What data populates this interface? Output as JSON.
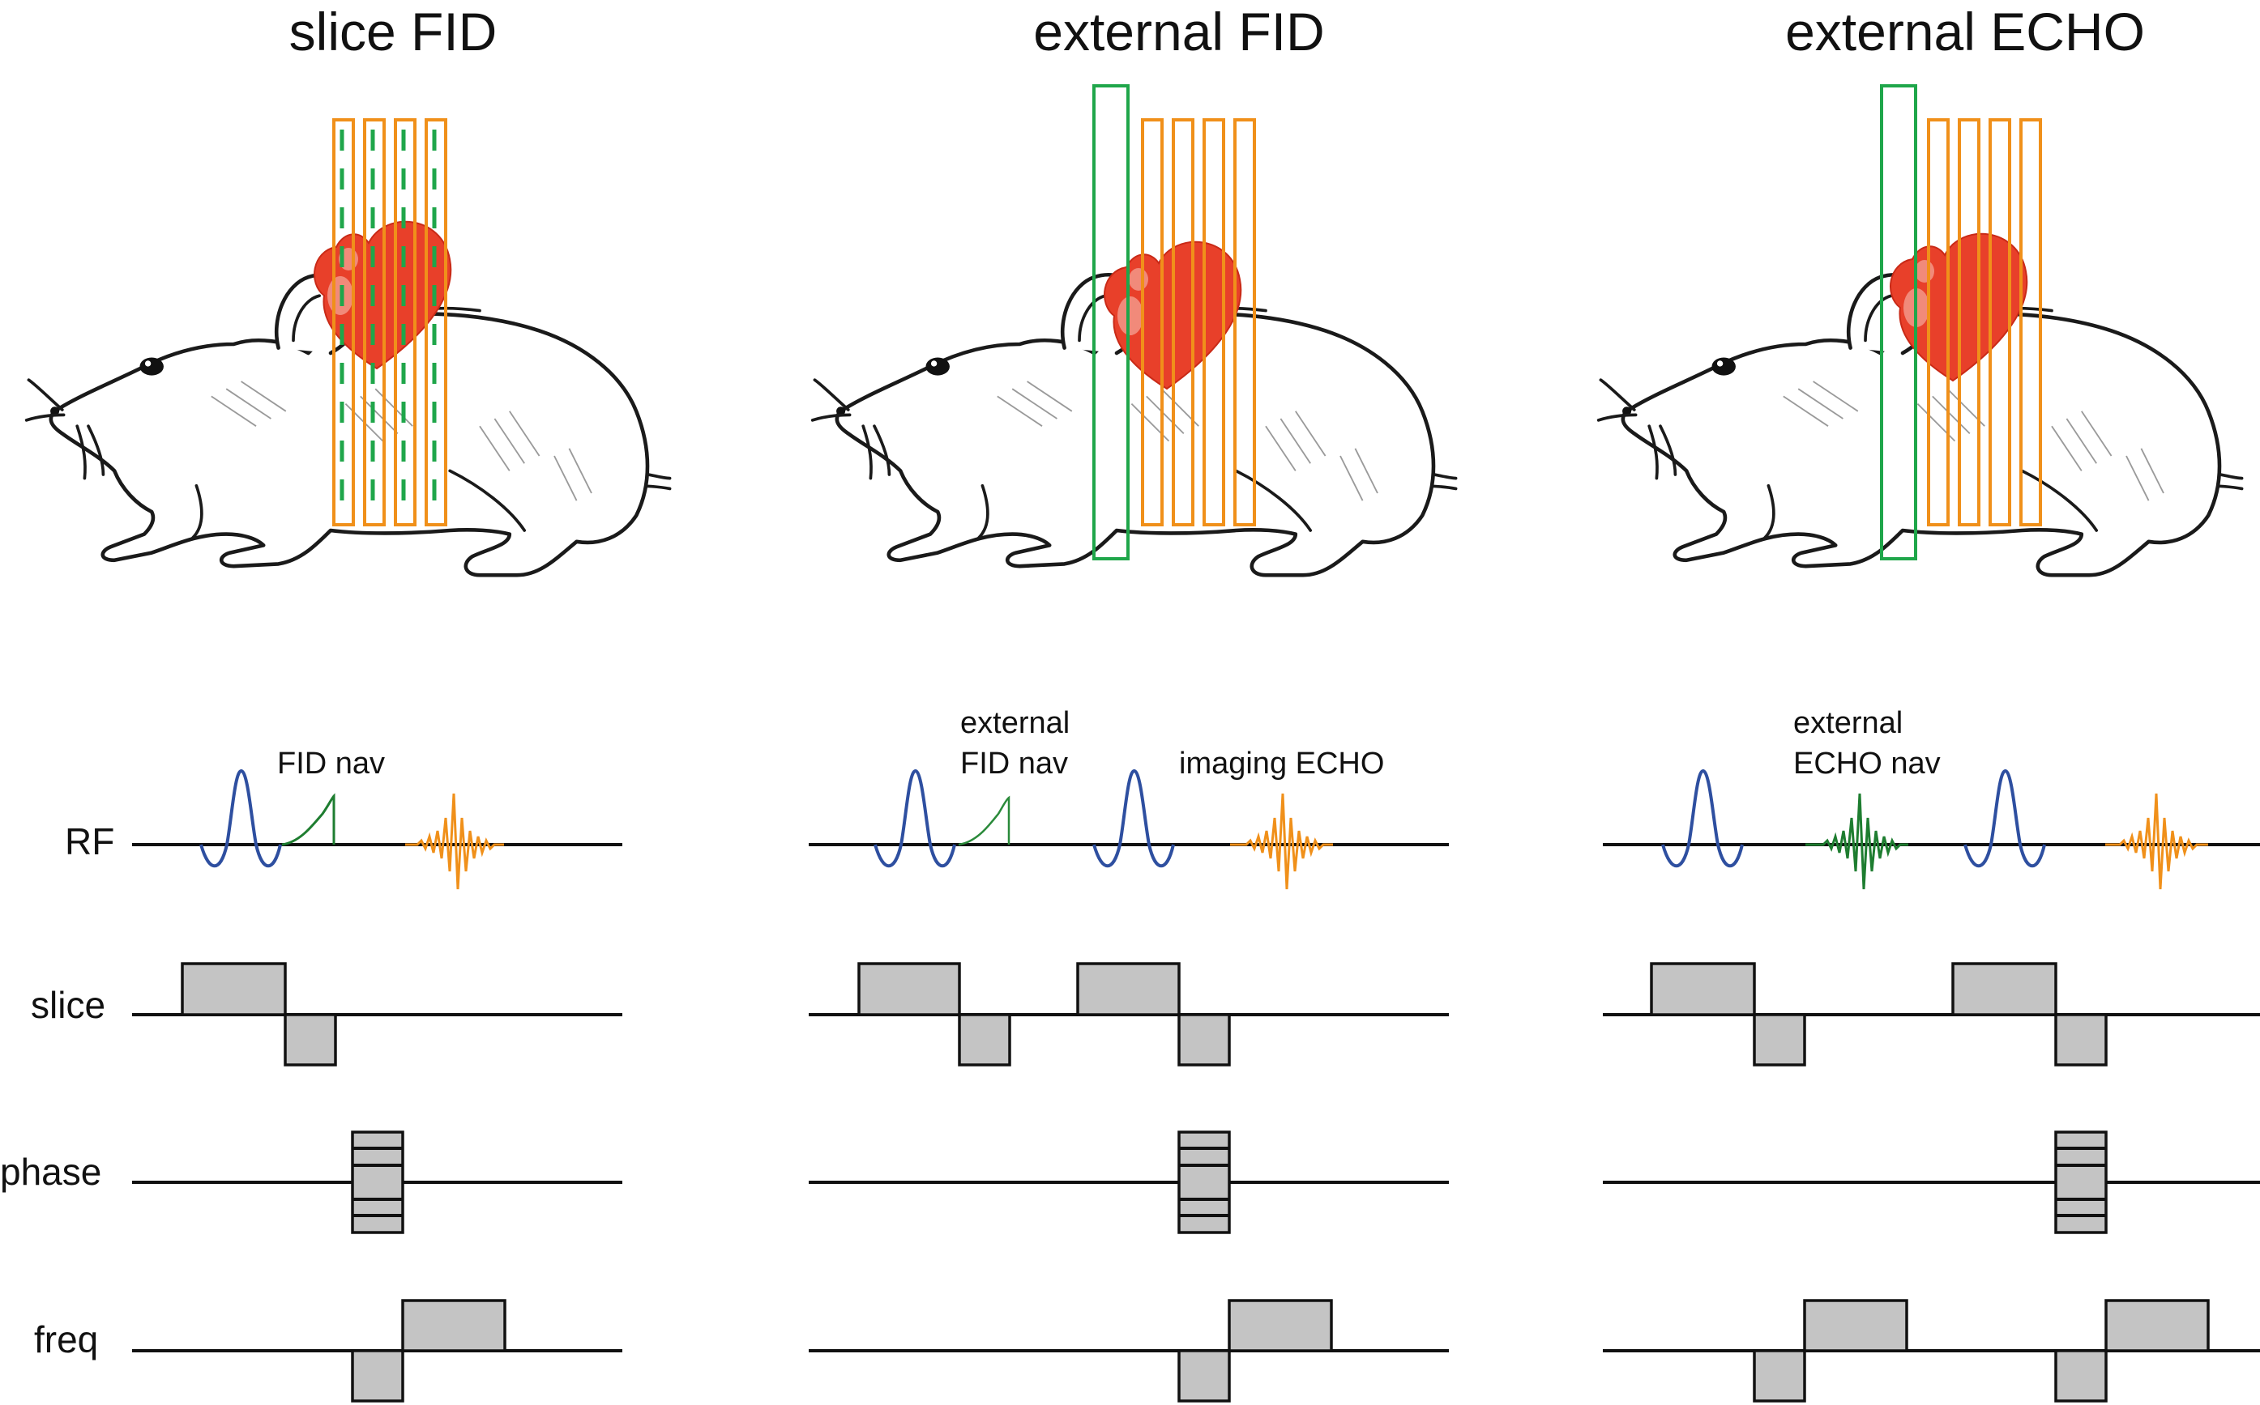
{
  "panels": [
    {
      "title": "slice FID",
      "annotations": [
        "FID nav"
      ]
    },
    {
      "title": "external FID",
      "annotations": [
        "external",
        "FID nav",
        "imaging ECHO"
      ]
    },
    {
      "title": "external ECHO",
      "annotations": [
        "external",
        "ECHO nav"
      ]
    }
  ],
  "row_labels": [
    "RF",
    "slice",
    "phase",
    "freq"
  ],
  "colors": {
    "rf_pulse": "#2e4fa0",
    "navigator": "#1e7d30",
    "imaging_echo": "#f0901a",
    "imaging_slices": "#f0901a",
    "navigator_slice": "#1fa64a",
    "heart": "#e8402a",
    "gradient_block": "#c4c4c4"
  }
}
